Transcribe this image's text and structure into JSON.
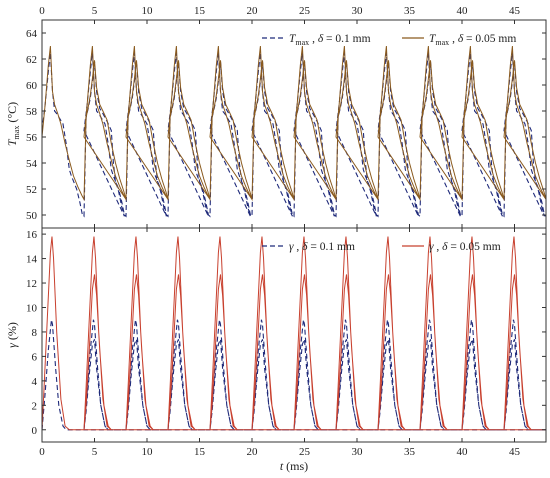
{
  "chart_data": [
    {
      "type": "line",
      "ylabel_main": "T",
      "ylabel_sub": "max",
      "ylabel_unit": " (°C)",
      "ylim": [
        49,
        65
      ],
      "yticks": [
        50,
        52,
        54,
        56,
        58,
        60,
        62,
        64
      ],
      "xlim": [
        0,
        48
      ],
      "xticks": [
        0,
        5,
        10,
        15,
        20,
        25,
        30,
        35,
        40,
        45
      ],
      "x_axis_position": "top",
      "grid": false,
      "legend_placement": "top-right",
      "period_ms": 4,
      "series": [
        {
          "name": "T_max , δ = 0.1 mm",
          "legend_parts": [
            "T",
            "max",
            " , ",
            "δ",
            " = 0.1 mm"
          ],
          "style": "dashed",
          "color": "#1f2a7a",
          "x": [
            0,
            0.3,
            0.6,
            0.8,
            1.0,
            1.2,
            1.4,
            1.7,
            2.0,
            2.3,
            2.6,
            2.8,
            3.0,
            3.3,
            3.6,
            3.85,
            4.0,
            4.2,
            4.4,
            4.6,
            4.8,
            5.0,
            5.2,
            5.5,
            5.8,
            6.2,
            6.6,
            6.8,
            7.0,
            7.3,
            7.6,
            7.85
          ],
          "values": [
            56.5,
            58.5,
            61.0,
            62.5,
            59.5,
            58.0,
            57.8,
            57.4,
            57.0,
            55.5,
            53.5,
            53.0,
            52.6,
            52.0,
            51.0,
            50.0,
            49.9,
            57.5,
            58.2,
            59.0,
            60.3,
            61.8,
            59.5,
            58.2,
            57.8,
            57.2,
            56.5,
            54.0,
            52.6,
            51.8,
            50.6,
            49.9
          ]
        },
        {
          "name": "T_max , δ = 0.05 mm",
          "legend_parts": [
            "T",
            "max",
            " , ",
            "δ",
            " = 0.05 mm"
          ],
          "style": "solid",
          "color": "#8a5a1e",
          "x": [
            0,
            0.3,
            0.6,
            0.8,
            1.0,
            1.2,
            1.5,
            1.8,
            2.2,
            2.6,
            3.0,
            3.4,
            3.8,
            4.0,
            4.2,
            4.4,
            4.6,
            4.8,
            5.0,
            5.2,
            5.5,
            5.8,
            6.2,
            6.6,
            7.0,
            7.4,
            7.8,
            8.0
          ],
          "values": [
            56.0,
            58.5,
            61.5,
            63.0,
            59.5,
            58.5,
            57.8,
            57.0,
            55.5,
            54.2,
            53.0,
            52.2,
            51.5,
            51.2,
            57.5,
            58.3,
            59.2,
            60.5,
            61.9,
            59.8,
            58.5,
            58.0,
            57.3,
            55.5,
            54.0,
            52.8,
            51.8,
            51.2
          ]
        }
      ]
    },
    {
      "type": "line",
      "ylabel_main": "γ",
      "ylabel_unit": " (%)",
      "ylim": [
        -1,
        16.5
      ],
      "yticks": [
        0,
        2,
        4,
        6,
        8,
        10,
        12,
        14,
        16
      ],
      "xlim": [
        0,
        48
      ],
      "xticks": [
        0,
        5,
        10,
        15,
        20,
        25,
        30,
        35,
        40,
        45
      ],
      "xlabel_main": "t",
      "xlabel_unit": " (ms)",
      "grid": false,
      "legend_placement": "top-right",
      "period_ms": 4,
      "series": [
        {
          "name": "γ , δ = 0.1 mm",
          "legend_parts": [
            "γ",
            " , ",
            "δ",
            " = 0.1 mm"
          ],
          "style": "dashed",
          "color": "#1f2a7a",
          "x": [
            0,
            0.3,
            0.6,
            0.9,
            1.0,
            1.3,
            1.6,
            2.0,
            2.3,
            4.0,
            4.2,
            4.5,
            4.8,
            5.0,
            5.2,
            5.6,
            6.0,
            6.3,
            8.0
          ],
          "values": [
            0,
            3.0,
            6.5,
            9.0,
            8.6,
            5.0,
            2.0,
            0.3,
            0,
            0,
            1.5,
            4.5,
            7.0,
            7.4,
            5.0,
            2.0,
            0.3,
            0,
            0
          ]
        },
        {
          "name": "γ , δ = 0.05 mm",
          "legend_parts": [
            "γ",
            " , ",
            "δ",
            " = 0.05 mm"
          ],
          "style": "solid",
          "color": "#c8402e",
          "x": [
            0,
            0.2,
            0.5,
            0.8,
            0.95,
            1.1,
            1.4,
            1.8,
            2.2,
            2.6,
            4.0,
            4.2,
            4.5,
            4.8,
            5.0,
            5.2,
            5.5,
            5.9,
            6.3,
            6.6,
            8.0
          ],
          "values": [
            0,
            3.5,
            9.0,
            14.5,
            15.8,
            14.0,
            8.0,
            2.5,
            0.3,
            0,
            0,
            2.0,
            6.5,
            11.5,
            12.7,
            11.0,
            6.5,
            2.0,
            0.3,
            0,
            0
          ]
        }
      ]
    }
  ]
}
